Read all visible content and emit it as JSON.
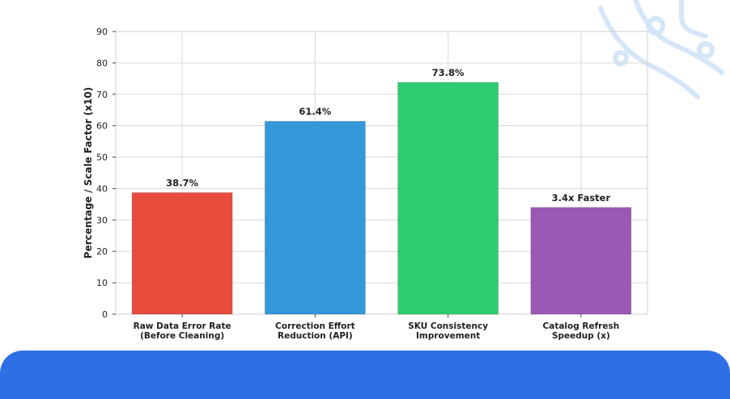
{
  "chart_data": {
    "type": "bar",
    "categories": [
      [
        "Raw Data Error Rate",
        "(Before Cleaning)"
      ],
      [
        "Correction Effort",
        "Reduction (API)"
      ],
      [
        "SKU Consistency",
        "Improvement"
      ],
      [
        "Catalog Refresh",
        "Speedup (x)"
      ]
    ],
    "values": [
      38.7,
      61.4,
      73.8,
      34
    ],
    "data_labels": [
      "38.7%",
      "61.4%",
      "73.8%",
      "3.4x Faster"
    ],
    "colors": [
      "#e74c3c",
      "#3498db",
      "#2ecc71",
      "#9b59b6"
    ],
    "ylabel": "Percentage / Scale Factor (x10)",
    "xlabel": "",
    "title": "",
    "ylim": [
      0,
      90
    ],
    "yticks": [
      0,
      10,
      20,
      30,
      40,
      50,
      60,
      70,
      80,
      90
    ],
    "grid": true
  }
}
